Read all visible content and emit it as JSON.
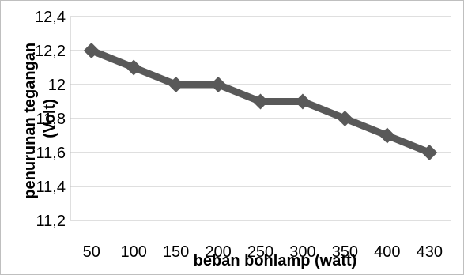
{
  "chart_data": {
    "type": "line",
    "title": "",
    "xlabel": "beban bohlamp (watt)",
    "ylabel_lines": [
      "penurunan tegangan",
      "(Volt)"
    ],
    "categories": [
      "50",
      "100",
      "150",
      "200",
      "250",
      "300",
      "350",
      "400",
      "430"
    ],
    "series": [
      {
        "values": [
          12.2,
          12.1,
          12.0,
          12.0,
          11.9,
          11.9,
          11.8,
          11.7,
          11.6
        ]
      }
    ],
    "ylim": [
      11.2,
      12.4
    ],
    "y_ticks": [
      "11,2",
      "11,4",
      "11,6",
      "11,8",
      "12",
      "12,2",
      "12,4"
    ],
    "y_tick_values": [
      11.2,
      11.4,
      11.6,
      11.8,
      12.0,
      12.2,
      12.4
    ],
    "grid": true,
    "legend": "none",
    "line_color": "#595959",
    "marker": "diamond"
  }
}
